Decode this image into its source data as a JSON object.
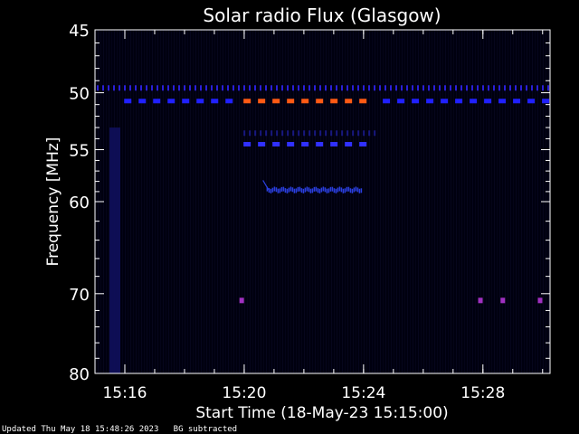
{
  "chart_data": {
    "type": "heatmap",
    "title": "Solar radio Flux (Glasgow)",
    "xlabel": "Start Time (18-May-23 15:15:00)",
    "ylabel": "Frequency [MHz]",
    "xlim": [
      "15:15:00",
      "15:30:15"
    ],
    "ylim": [
      45,
      80
    ],
    "y_scale": "log",
    "x_ticks": [
      "15:16",
      "15:20",
      "15:24",
      "15:28"
    ],
    "y_ticks": [
      45,
      50,
      55,
      60,
      70,
      80
    ],
    "background_color": "#000010",
    "features": [
      {
        "kind": "dotted-band",
        "freq_mhz": 49.6,
        "t_start": "15:15:00",
        "t_end": "15:30:15",
        "color": "#2a1fd8"
      },
      {
        "kind": "dashed-band",
        "freq_mhz": 50.7,
        "t_start": "15:15:55",
        "t_end": "15:19:55",
        "color": "#2020ff"
      },
      {
        "kind": "dashed-band",
        "freq_mhz": 50.7,
        "t_start": "15:19:55",
        "t_end": "15:24:35",
        "color": "#ff5a14"
      },
      {
        "kind": "dashed-band",
        "freq_mhz": 50.7,
        "t_start": "15:24:35",
        "t_end": "15:30:15",
        "color": "#2020ff"
      },
      {
        "kind": "dashed-band",
        "freq_mhz": 54.5,
        "t_start": "15:19:55",
        "t_end": "15:24:35",
        "color": "#3030ff"
      },
      {
        "kind": "dotted-band",
        "freq_mhz": 53.5,
        "t_start": "15:19:55",
        "t_end": "15:24:35",
        "color": "#181880"
      },
      {
        "kind": "burst",
        "freq_mhz": 58.8,
        "t_start": "15:20:45",
        "t_end": "15:23:55",
        "color": "#2a3fe0"
      },
      {
        "kind": "spot",
        "freq_mhz": 70.8,
        "time": "15:19:55",
        "color": "#a030c0"
      },
      {
        "kind": "spot",
        "freq_mhz": 70.8,
        "time": "15:27:55",
        "color": "#a030c0"
      },
      {
        "kind": "spot",
        "freq_mhz": 70.8,
        "time": "15:28:40",
        "color": "#a030c0"
      },
      {
        "kind": "spot",
        "freq_mhz": 70.8,
        "time": "15:29:55",
        "color": "#a030c0"
      },
      {
        "kind": "vertical-streak",
        "time": "15:15:40",
        "freq_from_mhz": 53,
        "freq_to_mhz": 80,
        "color": "#101060"
      }
    ]
  },
  "footer": {
    "updated": "Updated Thu May 18 15:48:26 2023",
    "note": "BG subtracted"
  }
}
